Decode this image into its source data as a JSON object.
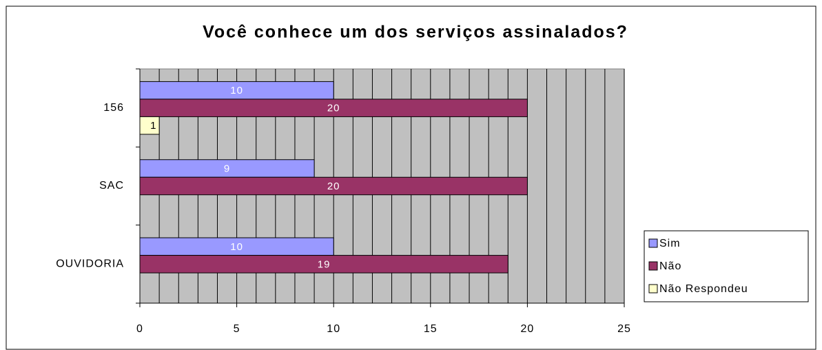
{
  "chart_data": {
    "type": "hbar",
    "title": "Você conhece um dos serviços assinalados?",
    "categories": [
      "156",
      "SAC",
      "OUVIDORIA"
    ],
    "series": [
      {
        "name": "Sim",
        "color": "#9999ff",
        "values": [
          10,
          9,
          10
        ]
      },
      {
        "name": "Não",
        "color": "#993366",
        "values": [
          20,
          20,
          19
        ]
      },
      {
        "name": "Não Respondeu",
        "color": "#ffffcc",
        "values": [
          1,
          null,
          null
        ]
      }
    ],
    "xlim": [
      0,
      25
    ],
    "xticks": [
      0,
      5,
      10,
      15,
      20,
      25
    ],
    "grid": true,
    "legend": "right"
  }
}
